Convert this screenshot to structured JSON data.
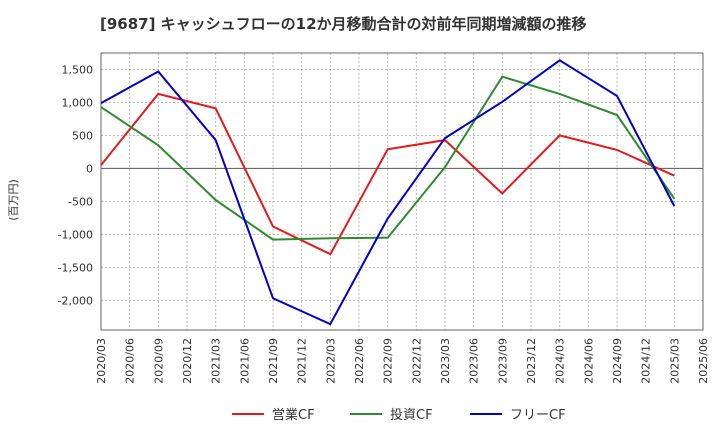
{
  "chart_data": {
    "type": "line",
    "title": "[9687]  キャッシュフローの12か月移動合計の対前年同期増減額の推移",
    "ylabel": "(百万円)",
    "xlabel": "",
    "ylim": [
      -2450,
      1750
    ],
    "yticks": [
      1500,
      1000,
      500,
      0,
      -500,
      -1000,
      -1500,
      -2000
    ],
    "ytick_labels": [
      "1,500",
      "1,000",
      "500",
      "0",
      "-500",
      "-1,000",
      "-1,500",
      "-2,000"
    ],
    "categories": [
      "2020/03",
      "2020/06",
      "2020/09",
      "2020/12",
      "2021/03",
      "2021/06",
      "2021/09",
      "2021/12",
      "2022/03",
      "2022/06",
      "2022/09",
      "2022/12",
      "2023/03",
      "2023/06",
      "2023/09",
      "2023/12",
      "2024/03",
      "2024/06",
      "2024/09",
      "2024/12",
      "2025/03",
      "2025/06"
    ],
    "grid": true,
    "legend_position": "bottom",
    "series": [
      {
        "name": "営業CF",
        "color": "#e41a1c",
        "values": [
          50,
          null,
          1130,
          null,
          910,
          null,
          -880,
          null,
          -1300,
          null,
          290,
          null,
          430,
          null,
          -380,
          null,
          500,
          null,
          280,
          null,
          -110,
          null
        ]
      },
      {
        "name": "投資CF",
        "color": "#2e8b2e",
        "values": [
          930,
          null,
          350,
          null,
          -480,
          null,
          -1080,
          null,
          -1060,
          null,
          -1050,
          null,
          20,
          null,
          1390,
          null,
          1130,
          null,
          810,
          null,
          -460,
          null
        ]
      },
      {
        "name": "フリーCF",
        "color": "#0000cc",
        "values": [
          990,
          null,
          1470,
          null,
          430,
          null,
          -1970,
          null,
          -2360,
          null,
          -760,
          null,
          460,
          null,
          1010,
          null,
          1640,
          null,
          1100,
          null,
          -570,
          null
        ]
      }
    ]
  }
}
